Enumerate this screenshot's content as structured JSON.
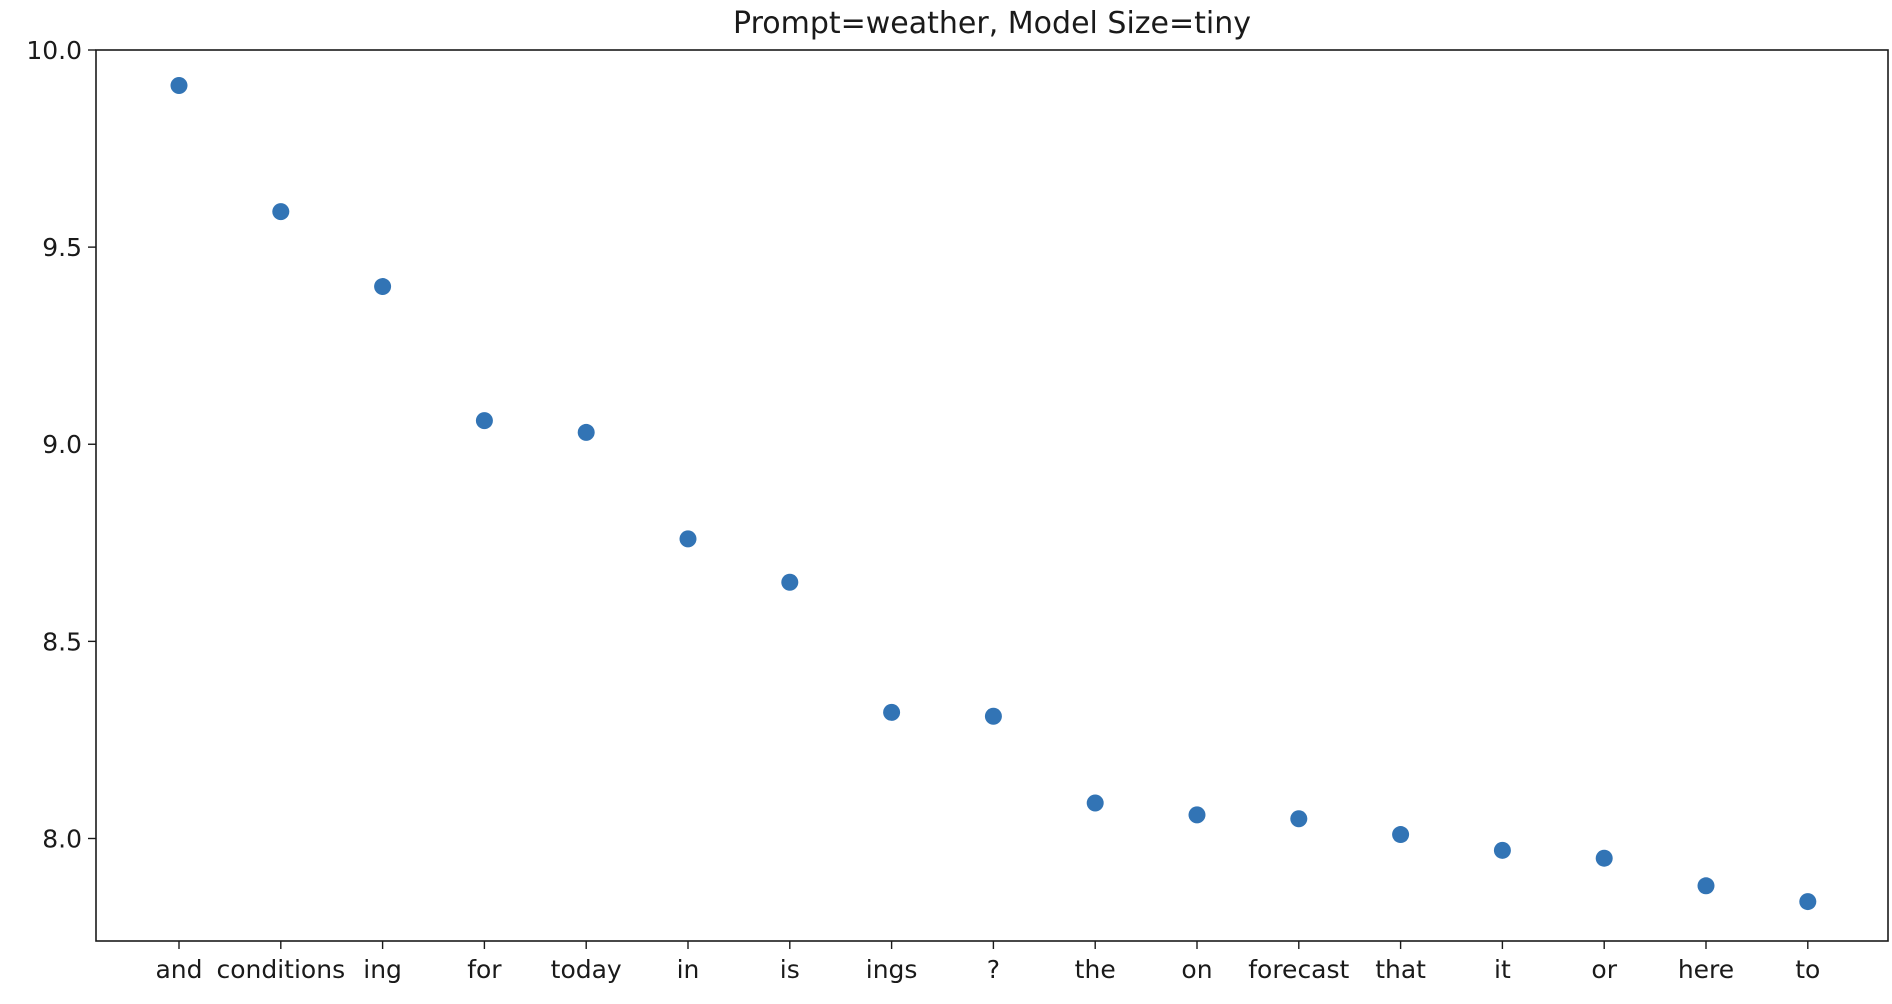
{
  "chart_data": {
    "type": "scatter",
    "title": "Prompt=weather, Model Size=tiny",
    "xlabel": "",
    "ylabel": "",
    "categories": [
      "and",
      "conditions",
      "ing",
      "for",
      "today",
      "in",
      "is",
      "ings",
      "?",
      "the",
      "on",
      "forecast",
      "that",
      "it",
      "or",
      "here",
      "to"
    ],
    "series": [
      {
        "values": [
          9.91,
          9.59,
          9.4,
          9.06,
          9.03,
          8.76,
          8.65,
          8.32,
          8.31,
          8.09,
          8.06,
          8.05,
          8.01,
          7.97,
          7.95,
          7.88,
          7.84
        ]
      }
    ],
    "ylim": [
      7.74,
      10.0
    ],
    "yticks": [
      "8.0",
      "8.5",
      "9.0",
      "9.5",
      "10.0"
    ],
    "grid": false,
    "marker_color": "#3274b5"
  }
}
